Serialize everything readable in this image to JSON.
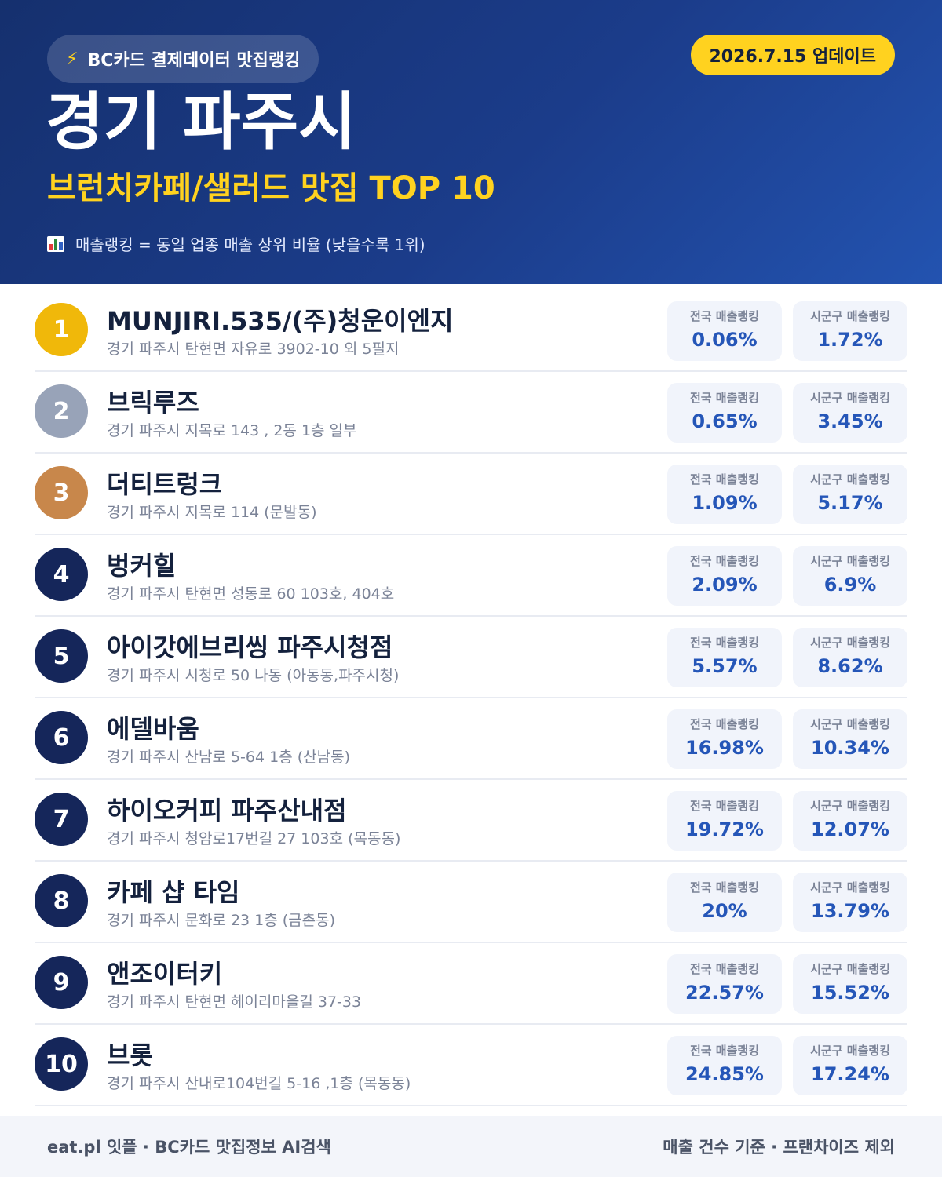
{
  "header": {
    "brand": "BC카드 결제데이터 맛집랭킹",
    "update": "2026.7.15 업데이트",
    "city": "경기 파주시",
    "category": "브런치카페/샐러드 맛집 TOP 10",
    "legend": "매출랭킹 = 동일 업종 매출 상위 비율 (낮을수록 1위)"
  },
  "labels": {
    "national": "전국 매출랭킹",
    "local": "시군구 매출랭킹"
  },
  "colors": {
    "gold": "#f0b80a",
    "silver": "#98a3b8",
    "bronze": "#c8874b",
    "navy": "#15265a",
    "accent": "#ffd21f"
  },
  "items": [
    {
      "rank": "1",
      "name": "MUNJIRI.535/(주)청운이엔지",
      "address": "경기 파주시 탄현면 자유로 3902-10 외 5필지",
      "national": "0.06%",
      "local": "1.72%",
      "badge": "gold"
    },
    {
      "rank": "2",
      "name": "브릭루즈",
      "address": "경기 파주시 지목로 143 , 2동 1층 일부",
      "national": "0.65%",
      "local": "3.45%",
      "badge": "silver"
    },
    {
      "rank": "3",
      "name": "더티트렁크",
      "address": "경기 파주시 지목로 114 (문발동)",
      "national": "1.09%",
      "local": "5.17%",
      "badge": "bronze"
    },
    {
      "rank": "4",
      "name": "벙커힐",
      "address": "경기 파주시 탄현면 성동로 60 103호, 404호",
      "national": "2.09%",
      "local": "6.9%",
      "badge": "navy"
    },
    {
      "rank": "5",
      "name": "아이갓에브리씽 파주시청점",
      "address": "경기 파주시 시청로 50 나동 (아동동,파주시청)",
      "national": "5.57%",
      "local": "8.62%",
      "badge": "navy"
    },
    {
      "rank": "6",
      "name": "에델바움",
      "address": "경기 파주시 산남로 5-64 1층 (산남동)",
      "national": "16.98%",
      "local": "10.34%",
      "badge": "navy"
    },
    {
      "rank": "7",
      "name": "하이오커피 파주산내점",
      "address": "경기 파주시 청암로17번길 27 103호 (목동동)",
      "national": "19.72%",
      "local": "12.07%",
      "badge": "navy"
    },
    {
      "rank": "8",
      "name": "카페 샵 타임",
      "address": "경기 파주시 문화로 23 1층 (금촌동)",
      "national": "20%",
      "local": "13.79%",
      "badge": "navy"
    },
    {
      "rank": "9",
      "name": "앤조이터키",
      "address": "경기 파주시 탄현면 헤이리마을길 37-33",
      "national": "22.57%",
      "local": "15.52%",
      "badge": "navy"
    },
    {
      "rank": "10",
      "name": "브롯",
      "address": "경기 파주시 산내로104번길 5-16 ,1층 (목동동)",
      "national": "24.85%",
      "local": "17.24%",
      "badge": "navy"
    }
  ],
  "footer": {
    "left": "eat.pl 잇플 · BC카드 맛집정보 AI검색",
    "right": "매출 건수 기준 · 프랜차이즈 제외"
  }
}
